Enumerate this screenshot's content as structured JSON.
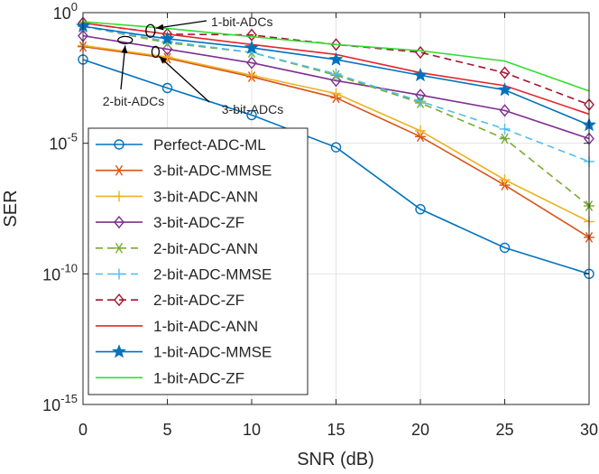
{
  "chart_data": {
    "type": "line",
    "xlabel": "SNR (dB)",
    "ylabel": "SER",
    "x": [
      0,
      5,
      10,
      15,
      20,
      25,
      30
    ],
    "xlim": [
      0,
      30
    ],
    "xticks": [
      "0",
      "5",
      "10",
      "15",
      "20",
      "25",
      "30"
    ],
    "yscale": "log",
    "ylim_exponent": [
      -15,
      0
    ],
    "ytick_exponents": [
      0,
      -5,
      -10,
      -15
    ],
    "grid": true,
    "legend_position": "lower-left",
    "series": [
      {
        "name": "Perfect-ADC-ML",
        "color": "#0072BD",
        "dash": "solid",
        "marker": "circle",
        "values": [
          0.016,
          0.0013,
          0.00012,
          7e-06,
          3e-08,
          1e-09,
          1e-10
        ]
      },
      {
        "name": "3-bit-ADC-MMSE",
        "color": "#D95319",
        "dash": "solid",
        "marker": "asterisk",
        "values": [
          0.05,
          0.018,
          0.0035,
          0.00055,
          1.8e-05,
          2.5e-07,
          2.5e-09
        ]
      },
      {
        "name": "3-bit-ADC-ANN",
        "color": "#EDB120",
        "dash": "solid",
        "marker": "plus",
        "values": [
          0.055,
          0.02,
          0.004,
          0.0008,
          3e-05,
          4e-07,
          1e-08
        ]
      },
      {
        "name": "3-bit-ADC-ZF",
        "color": "#7E2F8E",
        "dash": "solid",
        "marker": "diamond",
        "values": [
          0.13,
          0.04,
          0.012,
          0.0025,
          0.0007,
          0.00018,
          1.5e-05
        ]
      },
      {
        "name": "2-bit-ADC-ANN",
        "color": "#77AC30",
        "dash": "dashed",
        "marker": "asterisk",
        "values": [
          0.3,
          0.07,
          0.03,
          0.004,
          0.00035,
          1.5e-05,
          4e-08
        ]
      },
      {
        "name": "2-bit-ADC-MMSE",
        "color": "#4DBEEE",
        "dash": "dashed",
        "marker": "plus",
        "values": [
          0.3,
          0.08,
          0.03,
          0.0045,
          0.0004,
          3.5e-05,
          2e-06
        ]
      },
      {
        "name": "2-bit-ADC-ZF",
        "color": "#A2142F",
        "dash": "dashed",
        "marker": "diamond",
        "values": [
          0.4,
          0.15,
          0.14,
          0.06,
          0.03,
          0.005,
          0.0003
        ]
      },
      {
        "name": "1-bit-ADC-ANN",
        "color": "#E3262B",
        "dash": "solid",
        "marker": "none",
        "values": [
          0.4,
          0.15,
          0.06,
          0.025,
          0.005,
          0.0016,
          0.00013
        ]
      },
      {
        "name": "1-bit-ADC-MMSE",
        "color": "#0072BD",
        "dash": "solid",
        "marker": "star",
        "values": [
          0.3,
          0.1,
          0.045,
          0.016,
          0.004,
          0.0011,
          5e-05
        ]
      },
      {
        "name": "1-bit-ADC-ZF",
        "color": "#33DD33",
        "dash": "solid",
        "marker": "none",
        "values": [
          0.45,
          0.25,
          0.12,
          0.06,
          0.035,
          0.014,
          0.001
        ]
      }
    ],
    "annotations": [
      {
        "text": "1-bit-ADCs",
        "anchor_x": 4,
        "anchor_exponent": -0.7
      },
      {
        "text": "2-bit-ADCs",
        "anchor_x": 2.5,
        "anchor_exponent": -1.05
      },
      {
        "text": "3-bit-ADCs",
        "anchor_x": 4.3,
        "anchor_exponent": -1.5
      }
    ]
  }
}
